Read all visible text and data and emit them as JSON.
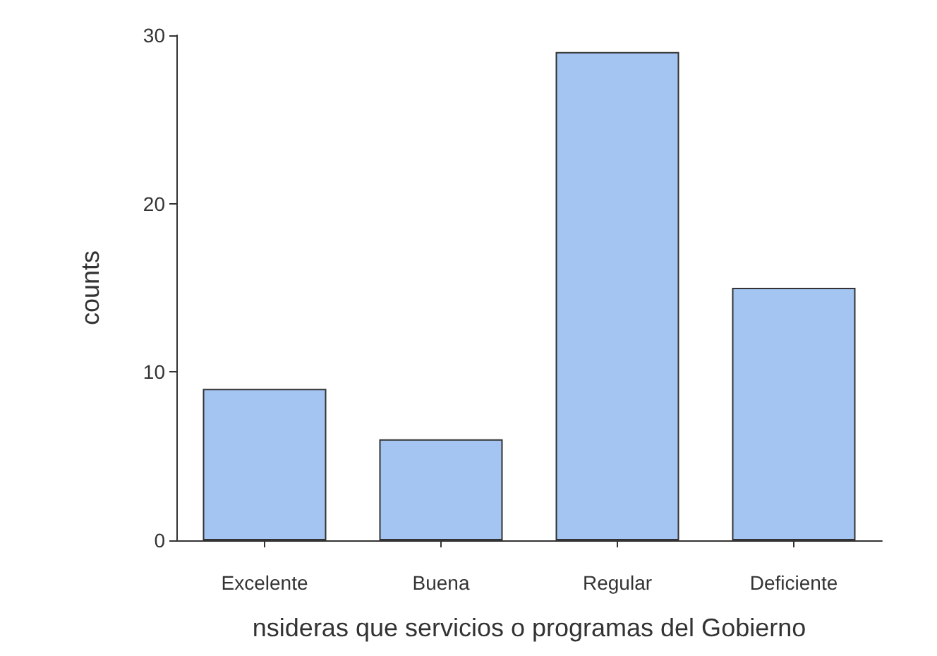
{
  "chart_data": {
    "type": "bar",
    "xlabel": "nsideras que servicios o programas del Gobierno",
    "ylabel": "counts",
    "categories": [
      "Excelente",
      "Buena",
      "Regular",
      "Deficiente"
    ],
    "values": [
      9,
      6,
      29,
      15
    ],
    "color": "#a4c4f2",
    "ylim": [
      0,
      30
    ],
    "yticks": [
      0,
      10,
      20,
      30
    ],
    "grid": false
  }
}
